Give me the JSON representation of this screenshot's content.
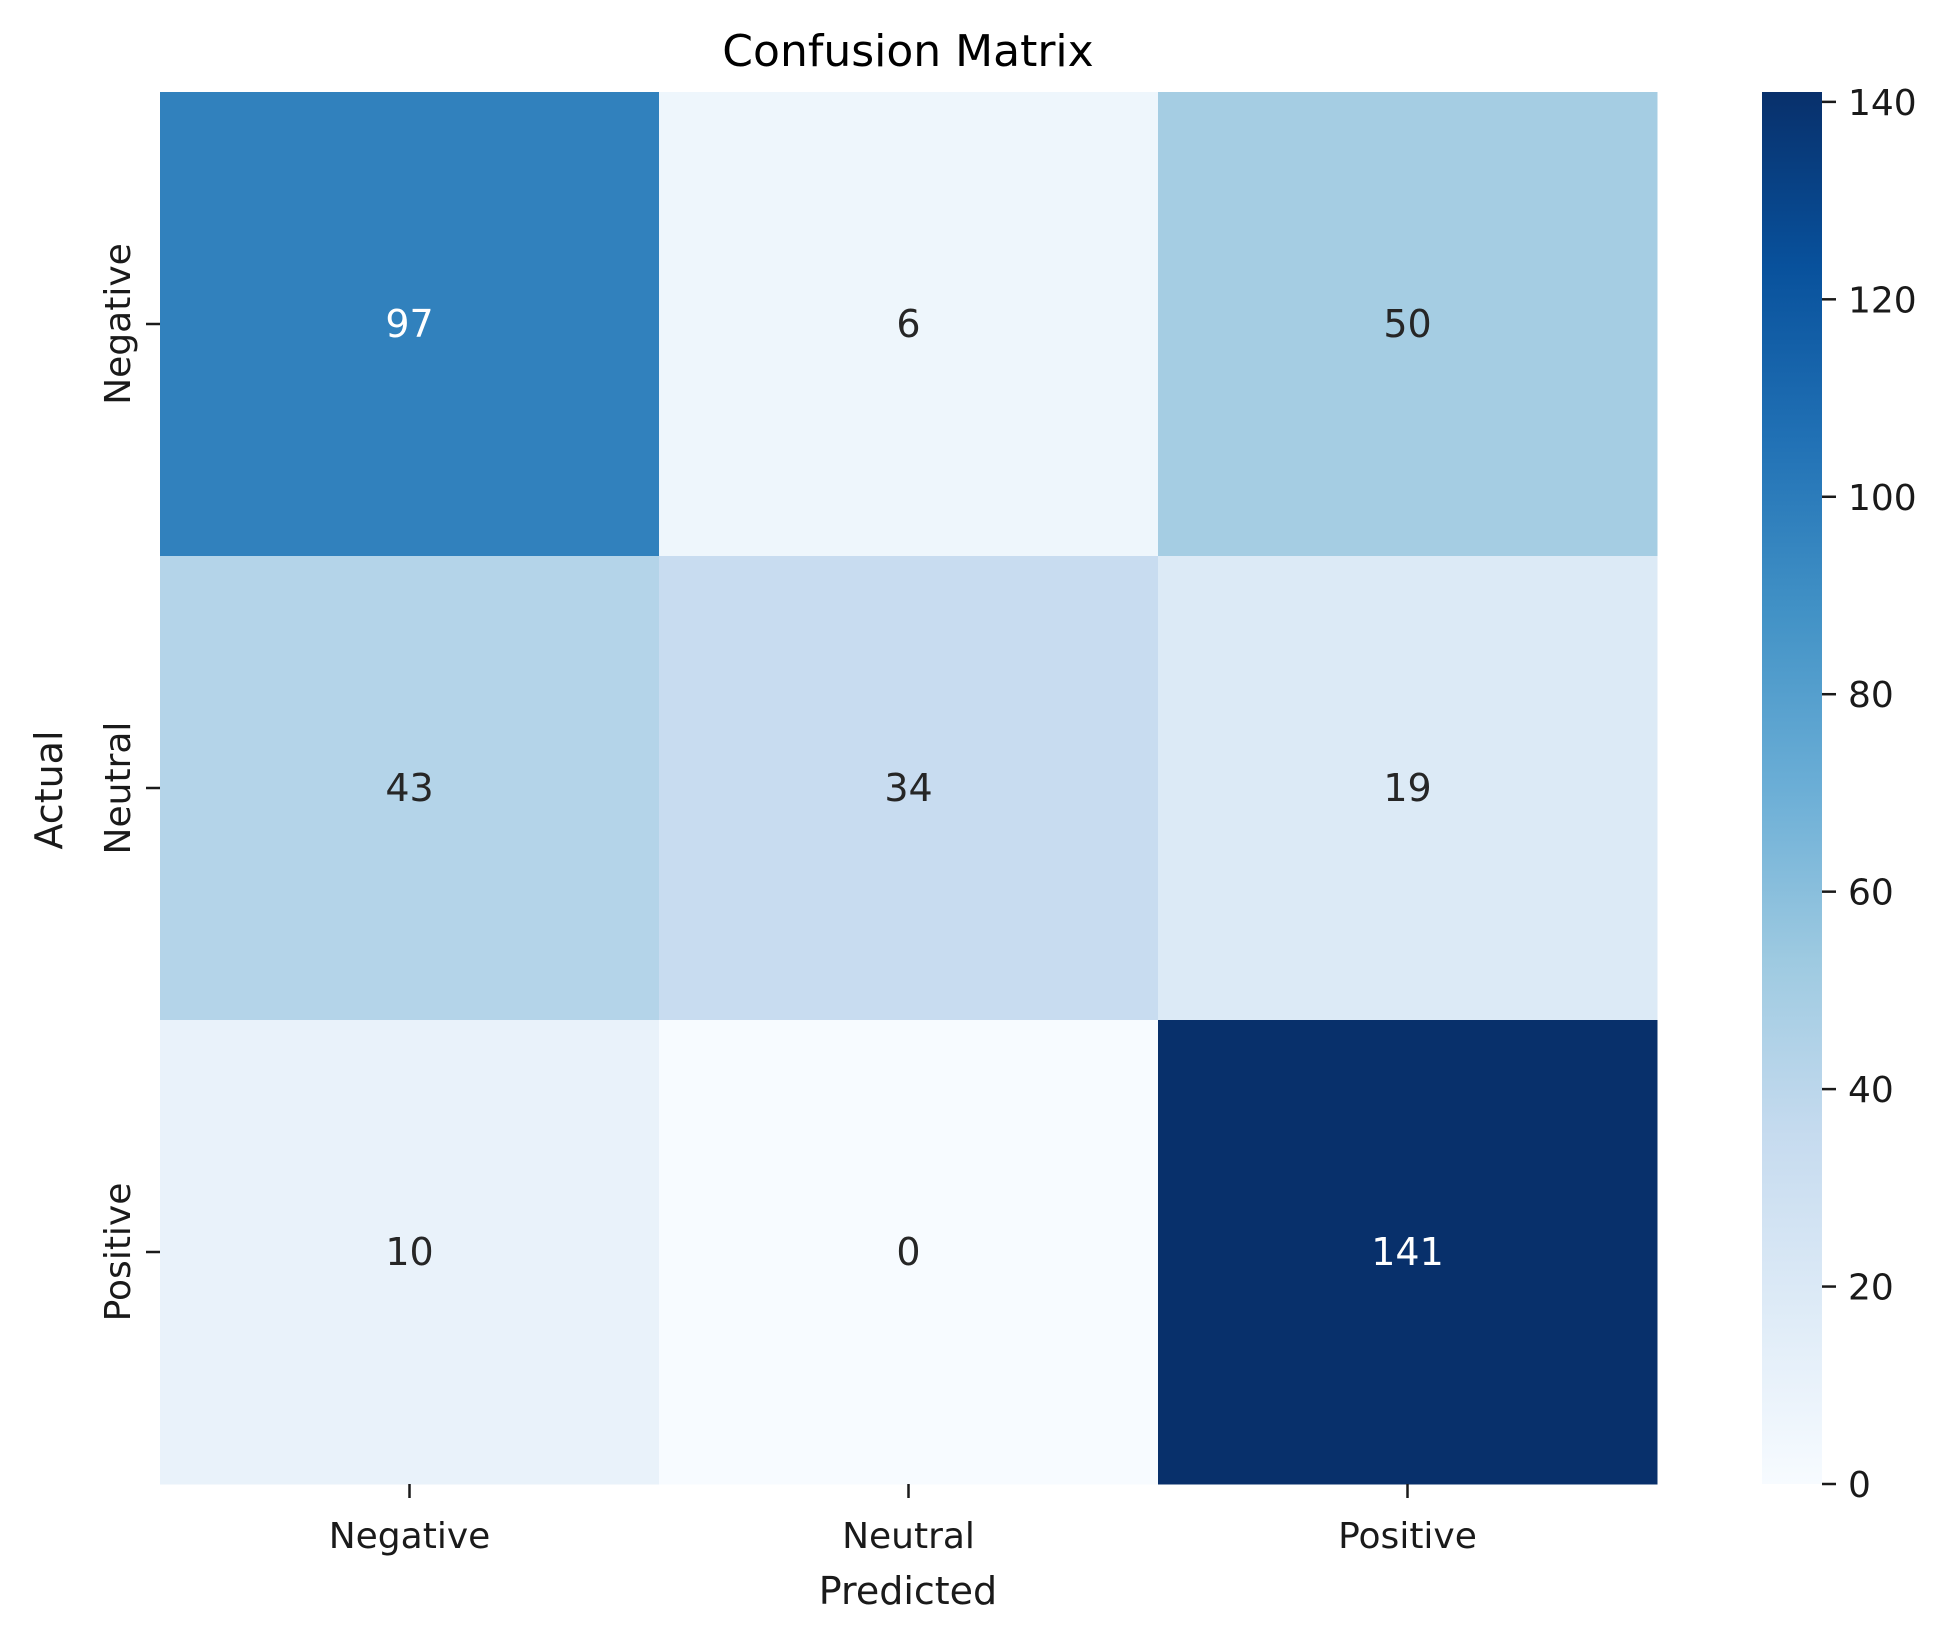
{
  "chart_data": {
    "type": "heatmap",
    "title": "Confusion Matrix",
    "xlabel": "Predicted",
    "ylabel": "Actual",
    "x_categories": [
      "Negative",
      "Neutral",
      "Positive"
    ],
    "y_categories": [
      "Negative",
      "Neutral",
      "Positive"
    ],
    "values": [
      [
        97,
        6,
        50
      ],
      [
        43,
        34,
        19
      ],
      [
        10,
        0,
        141
      ]
    ],
    "colormap": "Blues",
    "colorbar": {
      "range": [
        0,
        141
      ],
      "ticks": [
        0,
        20,
        40,
        60,
        80,
        100,
        120,
        140
      ],
      "tick_labels": [
        "0",
        "20",
        "40",
        "60",
        "80",
        "100",
        "120",
        "140"
      ]
    },
    "colors": {
      "low": "#f7fbff",
      "high": "#08306b",
      "text_dark": "#262626",
      "text_light": "#ffffff"
    }
  }
}
